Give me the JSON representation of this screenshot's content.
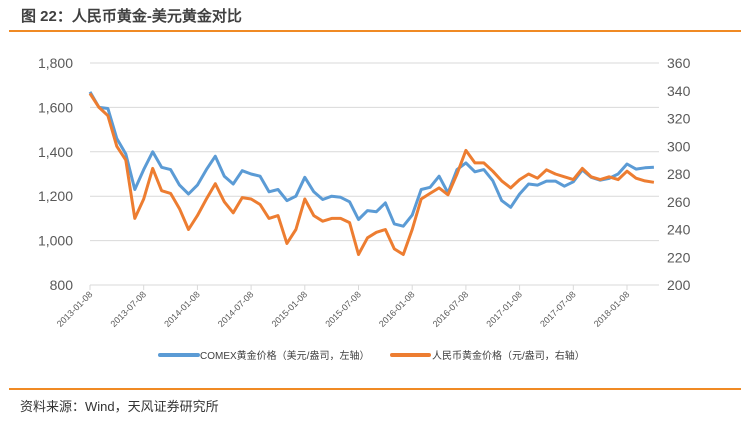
{
  "title": "图 22：人民币黄金-美元黄金对比",
  "source": "资料来源：Wind，天风证券研究所",
  "colors": {
    "accent": "#f08a24",
    "comex": "#5b9bd5",
    "rmb": "#ed7d31"
  },
  "chart_data": {
    "type": "line",
    "title": "人民币黄金-美元黄金对比",
    "x_start": "2013-01",
    "x_step": "month",
    "x": [
      "2013-01",
      "2013-02",
      "2013-03",
      "2013-04",
      "2013-05",
      "2013-06",
      "2013-07",
      "2013-08",
      "2013-09",
      "2013-10",
      "2013-11",
      "2013-12",
      "2014-01",
      "2014-02",
      "2014-03",
      "2014-04",
      "2014-05",
      "2014-06",
      "2014-07",
      "2014-08",
      "2014-09",
      "2014-10",
      "2014-11",
      "2014-12",
      "2015-01",
      "2015-02",
      "2015-03",
      "2015-04",
      "2015-05",
      "2015-06",
      "2015-07",
      "2015-08",
      "2015-09",
      "2015-10",
      "2015-11",
      "2015-12",
      "2016-01",
      "2016-02",
      "2016-03",
      "2016-04",
      "2016-05",
      "2016-06",
      "2016-07",
      "2016-08",
      "2016-09",
      "2016-10",
      "2016-11",
      "2016-12",
      "2017-01",
      "2017-02",
      "2017-03",
      "2017-04",
      "2017-05",
      "2017-06",
      "2017-07",
      "2017-08",
      "2017-09",
      "2017-10",
      "2017-11",
      "2017-12",
      "2018-01",
      "2018-02",
      "2018-03",
      "2018-04"
    ],
    "x_tick_labels": [
      "2013-01-08",
      "2013-07-08",
      "2014-01-08",
      "2014-07-08",
      "2015-01-08",
      "2015-07-08",
      "2016-01-08",
      "2016-07-08",
      "2017-01-08",
      "2017-07-08",
      "2018-01-08"
    ],
    "left_axis": {
      "ylim": [
        800,
        1800
      ],
      "ticks": [
        "800",
        "1,000",
        "1,200",
        "1,400",
        "1,600",
        "1,800"
      ]
    },
    "right_axis": {
      "ylim": [
        200,
        360
      ],
      "ticks": [
        "200",
        "220",
        "240",
        "260",
        "280",
        "300",
        "320",
        "340",
        "360"
      ]
    },
    "grid": true,
    "legend_position": "bottom",
    "series": [
      {
        "name": "COMEX黄金价格（美元/盎司，左轴）",
        "axis": "left",
        "values": [
          1670,
          1600,
          1595,
          1460,
          1390,
          1230,
          1320,
          1400,
          1330,
          1320,
          1250,
          1210,
          1250,
          1320,
          1380,
          1290,
          1255,
          1315,
          1300,
          1290,
          1220,
          1230,
          1180,
          1200,
          1285,
          1220,
          1185,
          1200,
          1195,
          1175,
          1095,
          1135,
          1130,
          1170,
          1075,
          1065,
          1115,
          1230,
          1240,
          1290,
          1215,
          1320,
          1350,
          1310,
          1320,
          1270,
          1180,
          1150,
          1210,
          1255,
          1250,
          1268,
          1268,
          1245,
          1265,
          1318,
          1285,
          1272,
          1280,
          1300,
          1345,
          1322,
          1328,
          1330
        ]
      },
      {
        "name": "人民币黄金价格（元/盎司，右轴）",
        "axis": "right",
        "values": [
          338,
          328,
          322,
          300,
          290,
          248,
          262,
          284,
          268,
          266,
          255,
          240,
          250,
          262,
          273,
          260,
          252,
          263,
          262,
          258,
          248,
          250,
          230,
          240,
          262,
          250,
          246,
          248,
          248,
          245,
          222,
          234,
          238,
          240,
          226,
          222,
          240,
          262,
          266,
          270,
          265,
          280,
          297,
          288,
          288,
          282,
          275,
          270,
          276,
          280,
          277,
          283,
          280,
          278,
          276,
          284,
          278,
          276,
          278,
          276,
          282,
          277,
          275,
          274
        ]
      }
    ]
  }
}
